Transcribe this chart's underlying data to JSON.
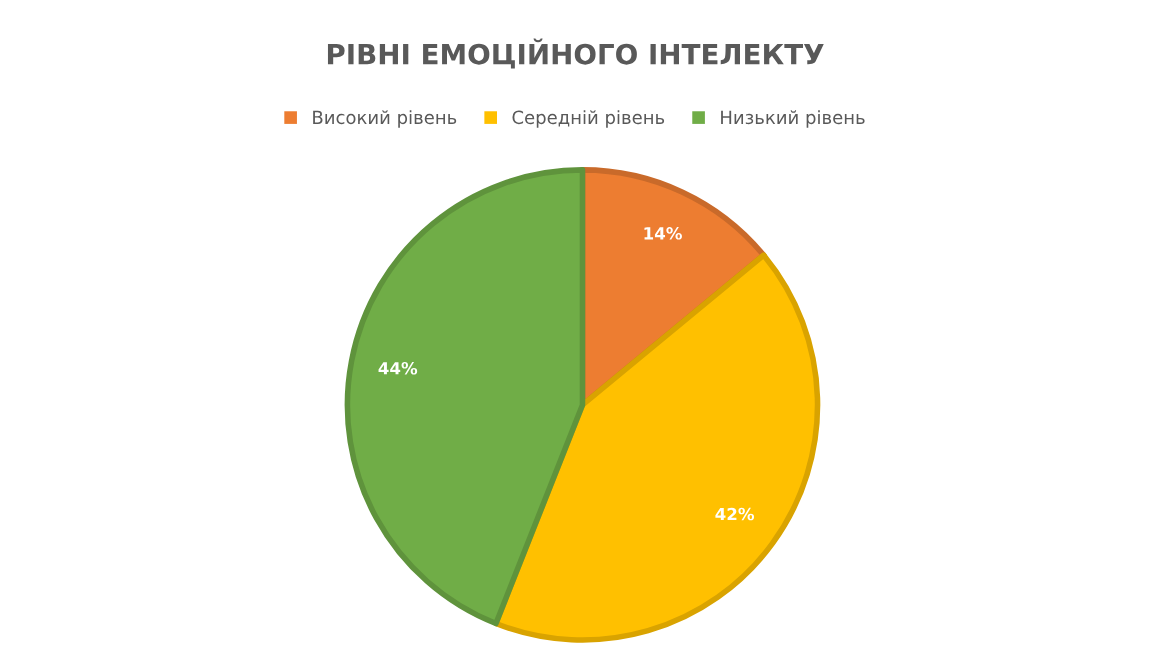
{
  "chart_data": {
    "type": "pie",
    "title": "РІВНІ ЕМОЦІЙНОГО ІНТЕЛЕКТУ",
    "categories": [
      "Високий рівень",
      "Середній рівень",
      "Низький рівень"
    ],
    "values": [
      14,
      42,
      44
    ],
    "colors": [
      "#ed7d31",
      "#ffc000",
      "#70ad47"
    ],
    "value_labels": [
      "14%",
      "42%",
      "44%"
    ],
    "legend": "top"
  }
}
